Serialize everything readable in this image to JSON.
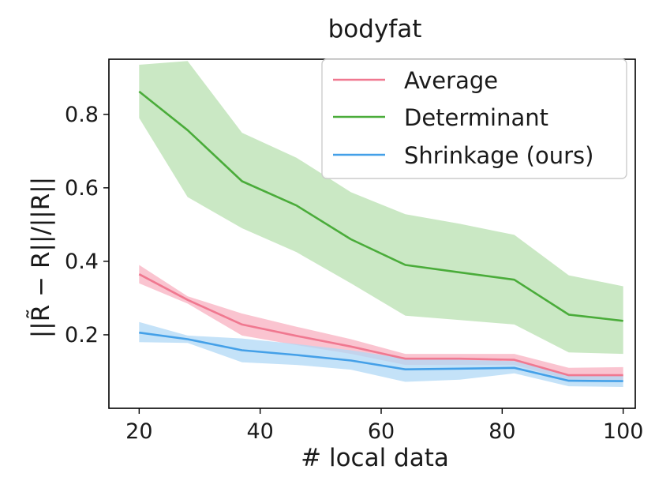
{
  "chart_data": {
    "type": "line",
    "title": "bodyfat",
    "xlabel": "# local data",
    "ylabel": "||R̃ − R||/||R||",
    "xlim": [
      15,
      102
    ],
    "ylim": [
      0.0,
      0.95
    ],
    "xticks": [
      20,
      40,
      60,
      80,
      100
    ],
    "yticks": [
      0.2,
      0.4,
      0.6,
      0.8
    ],
    "xtick_labels": [
      "20",
      "40",
      "60",
      "80",
      "100"
    ],
    "ytick_labels": [
      "0.2",
      "0.4",
      "0.6",
      "0.8"
    ],
    "legend_position": "top-right",
    "series": [
      {
        "name": "Average",
        "color": "#f07890",
        "band_color": "#f8b0c0",
        "x": [
          20,
          28,
          37,
          46,
          55,
          64,
          73,
          82,
          91,
          100
        ],
        "values": [
          0.365,
          0.295,
          0.228,
          0.197,
          0.168,
          0.135,
          0.135,
          0.132,
          0.09,
          0.09
        ],
        "lower": [
          0.34,
          0.285,
          0.198,
          0.172,
          0.148,
          0.118,
          0.118,
          0.118,
          0.078,
          0.077
        ],
        "upper": [
          0.39,
          0.305,
          0.258,
          0.222,
          0.188,
          0.148,
          0.148,
          0.148,
          0.11,
          0.112
        ]
      },
      {
        "name": "Determinant",
        "color": "#4aac3a",
        "band_color": "#b8e0b0",
        "x": [
          20,
          28,
          37,
          46,
          55,
          64,
          73,
          82,
          91,
          100
        ],
        "values": [
          0.862,
          0.757,
          0.618,
          0.552,
          0.46,
          0.39,
          0.37,
          0.35,
          0.255,
          0.238
        ],
        "lower": [
          0.79,
          0.575,
          0.49,
          0.425,
          0.34,
          0.252,
          0.24,
          0.228,
          0.152,
          0.148
        ],
        "upper": [
          0.935,
          0.945,
          0.75,
          0.682,
          0.588,
          0.528,
          0.502,
          0.472,
          0.362,
          0.332
        ]
      },
      {
        "name": "Shrinkage (ours)",
        "color": "#44a0e8",
        "band_color": "#b0d8f5",
        "x": [
          20,
          28,
          37,
          46,
          55,
          64,
          73,
          82,
          91,
          100
        ],
        "values": [
          0.206,
          0.188,
          0.158,
          0.145,
          0.13,
          0.106,
          0.108,
          0.11,
          0.075,
          0.074
        ],
        "lower": [
          0.18,
          0.178,
          0.125,
          0.118,
          0.105,
          0.072,
          0.078,
          0.095,
          0.06,
          0.058
        ],
        "upper": [
          0.235,
          0.198,
          0.19,
          0.175,
          0.158,
          0.135,
          0.132,
          0.128,
          0.092,
          0.09
        ]
      }
    ]
  }
}
